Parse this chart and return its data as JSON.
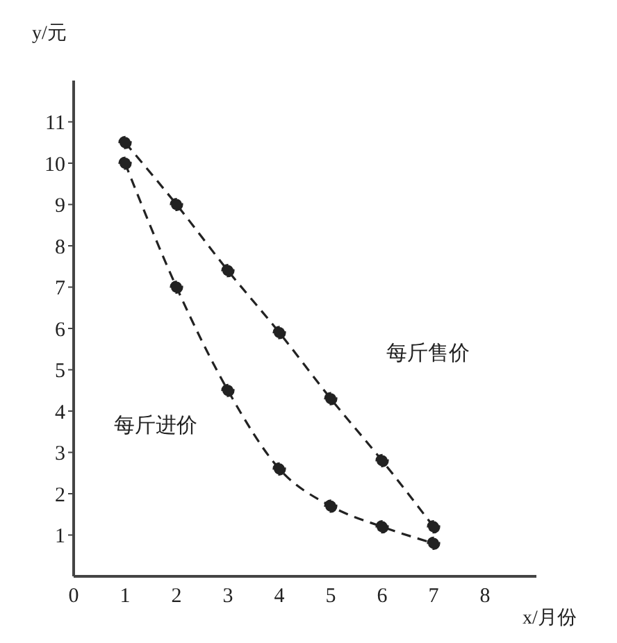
{
  "chart_data": {
    "type": "line",
    "xlabel": "x/月份",
    "ylabel": "y/元",
    "x": [
      1,
      2,
      3,
      4,
      5,
      6,
      7
    ],
    "series": [
      {
        "name": "每斤售价",
        "color": "#222222",
        "values": [
          10.5,
          9,
          7.4,
          5.9,
          4.3,
          2.8,
          1.2
        ]
      },
      {
        "name": "每斤进价",
        "color": "#222222",
        "values": [
          10,
          7,
          4.5,
          2.6,
          1.7,
          1.2,
          0.8
        ]
      }
    ],
    "xlim": [
      0,
      9
    ],
    "xticks": [
      0,
      1,
      2,
      3,
      4,
      5,
      6,
      7,
      8
    ],
    "ylim": [
      0,
      12
    ],
    "yticks": [
      1,
      2,
      3,
      4,
      5,
      6,
      7,
      8,
      9,
      10,
      11
    ],
    "grid": false,
    "legend": false,
    "marker": "circle",
    "line_style": "dashed"
  }
}
